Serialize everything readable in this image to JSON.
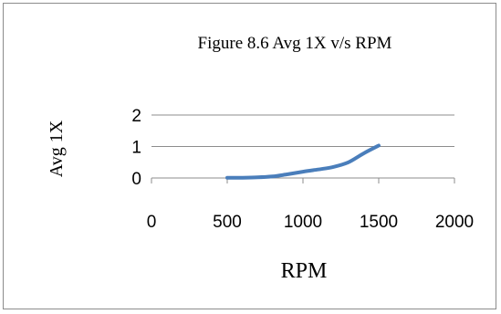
{
  "chart_data": {
    "type": "line",
    "title": "Figure 8.6 Avg 1X v/s RPM",
    "xlabel": "RPM",
    "ylabel": "Avg 1X",
    "xlim": [
      0,
      2000
    ],
    "ylim": [
      0,
      2
    ],
    "xticks": [
      "0",
      "500",
      "1000",
      "1500",
      "2000"
    ],
    "yticks": [
      "0",
      "1",
      "2"
    ],
    "grid": "horizontal",
    "legend": "none",
    "series": [
      {
        "color": "#4a7ebb",
        "x": [
          500,
          600,
          700,
          800,
          900,
          1000,
          1100,
          1200,
          1300,
          1400,
          1500
        ],
        "y": [
          0.01,
          0.01,
          0.02,
          0.05,
          0.12,
          0.2,
          0.27,
          0.35,
          0.5,
          0.78,
          1.03
        ]
      }
    ]
  }
}
